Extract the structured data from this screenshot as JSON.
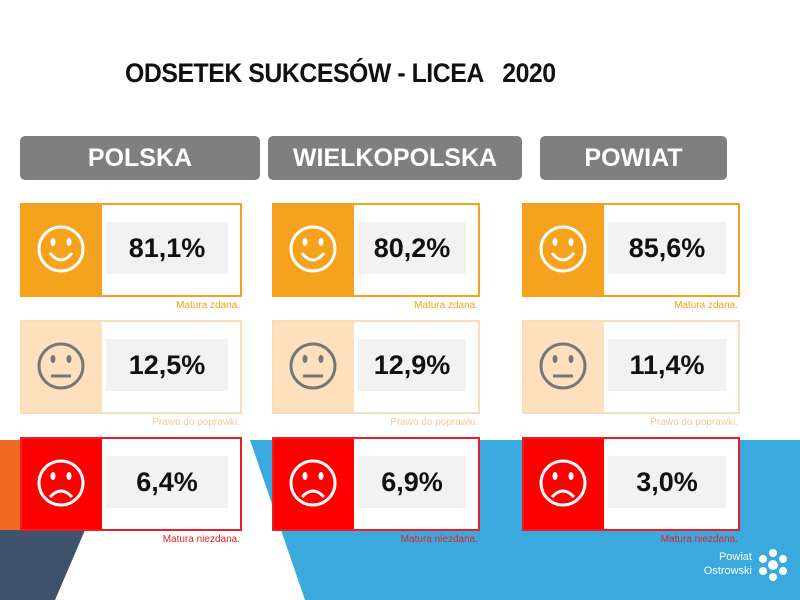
{
  "title": "ODSETEK SUKCESÓW - LICEA   2020",
  "columns": [
    {
      "header": "POLSKA",
      "rows": [
        {
          "value": "81,1%",
          "caption": "Matura zdana."
        },
        {
          "value": "12,5%",
          "caption": "Prawo do poprawki."
        },
        {
          "value": "6,4%",
          "caption": "Matura niezdana."
        }
      ]
    },
    {
      "header": "WIELKOPOLSKA",
      "rows": [
        {
          "value": "80,2%",
          "caption": "Matura zdana."
        },
        {
          "value": "12,9%",
          "caption": "Prawo do poprawki."
        },
        {
          "value": "6,9%",
          "caption": "Matura niezdana."
        }
      ]
    },
    {
      "header": "POWIAT",
      "rows": [
        {
          "value": "85,6%",
          "caption": "Matura zdana."
        },
        {
          "value": "11,4%",
          "caption": "Prawo do poprawki."
        },
        {
          "value": "3,0%",
          "caption": "Matura niezdana."
        }
      ]
    }
  ],
  "logo": {
    "line1": "Powiat",
    "line2": "Ostrowski"
  }
}
